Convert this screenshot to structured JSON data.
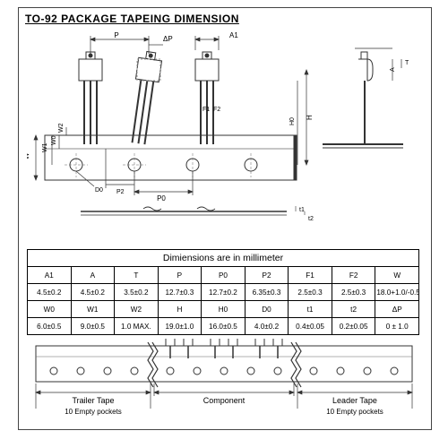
{
  "title": "TO-92  PACKAGE  TAPEING  DIMENSION",
  "table": {
    "header": "Dimiensions are in millimeter",
    "row1_headers": [
      "A1",
      "A",
      "T",
      "P",
      "P0",
      "P2",
      "F1",
      "F2",
      "W"
    ],
    "row1_values": [
      "4.5±0.2",
      "4.5±0.2",
      "3.5±0.2",
      "12.7±0.3",
      "12.7±0.2",
      "6.35±0.3",
      "2.5±0.3",
      "2.5±0.3",
      "18.0+1.0/-0.5"
    ],
    "row2_headers": [
      "W0",
      "W1",
      "W2",
      "H",
      "H0",
      "D0",
      "t1",
      "t2",
      "ΔP"
    ],
    "row2_values": [
      "6.0±0.5",
      "9.0±0.5",
      "1.0 MAX.",
      "19.0±1.0",
      "16.0±0.5",
      "4.0±0.2",
      "0.4±0.05",
      "0.2±0.05",
      "0 ± 1.0"
    ]
  },
  "lower": {
    "trailer_label": "Trailer Tape",
    "trailer_sub": "10 Empty pockets",
    "component_label": "Component",
    "leader_label": "Leader Tape",
    "leader_sub": "10 Empty pockets"
  },
  "dim_labels": {
    "P": "P",
    "dP": "ΔP",
    "A1": "A1",
    "A": "A",
    "T": "T",
    "W2": "W2",
    "W1": "W1",
    "W0": "W0",
    "W": "W",
    "D0": "D0",
    "P2": "P2",
    "P0": "P0",
    "F1": "F1",
    "F2": "F2",
    "H0": "H0",
    "H": "H",
    "t1": "t1",
    "t2": "t2"
  },
  "colors": {
    "line": "#333333",
    "thin": "#666666",
    "bg": "#ffffff"
  }
}
